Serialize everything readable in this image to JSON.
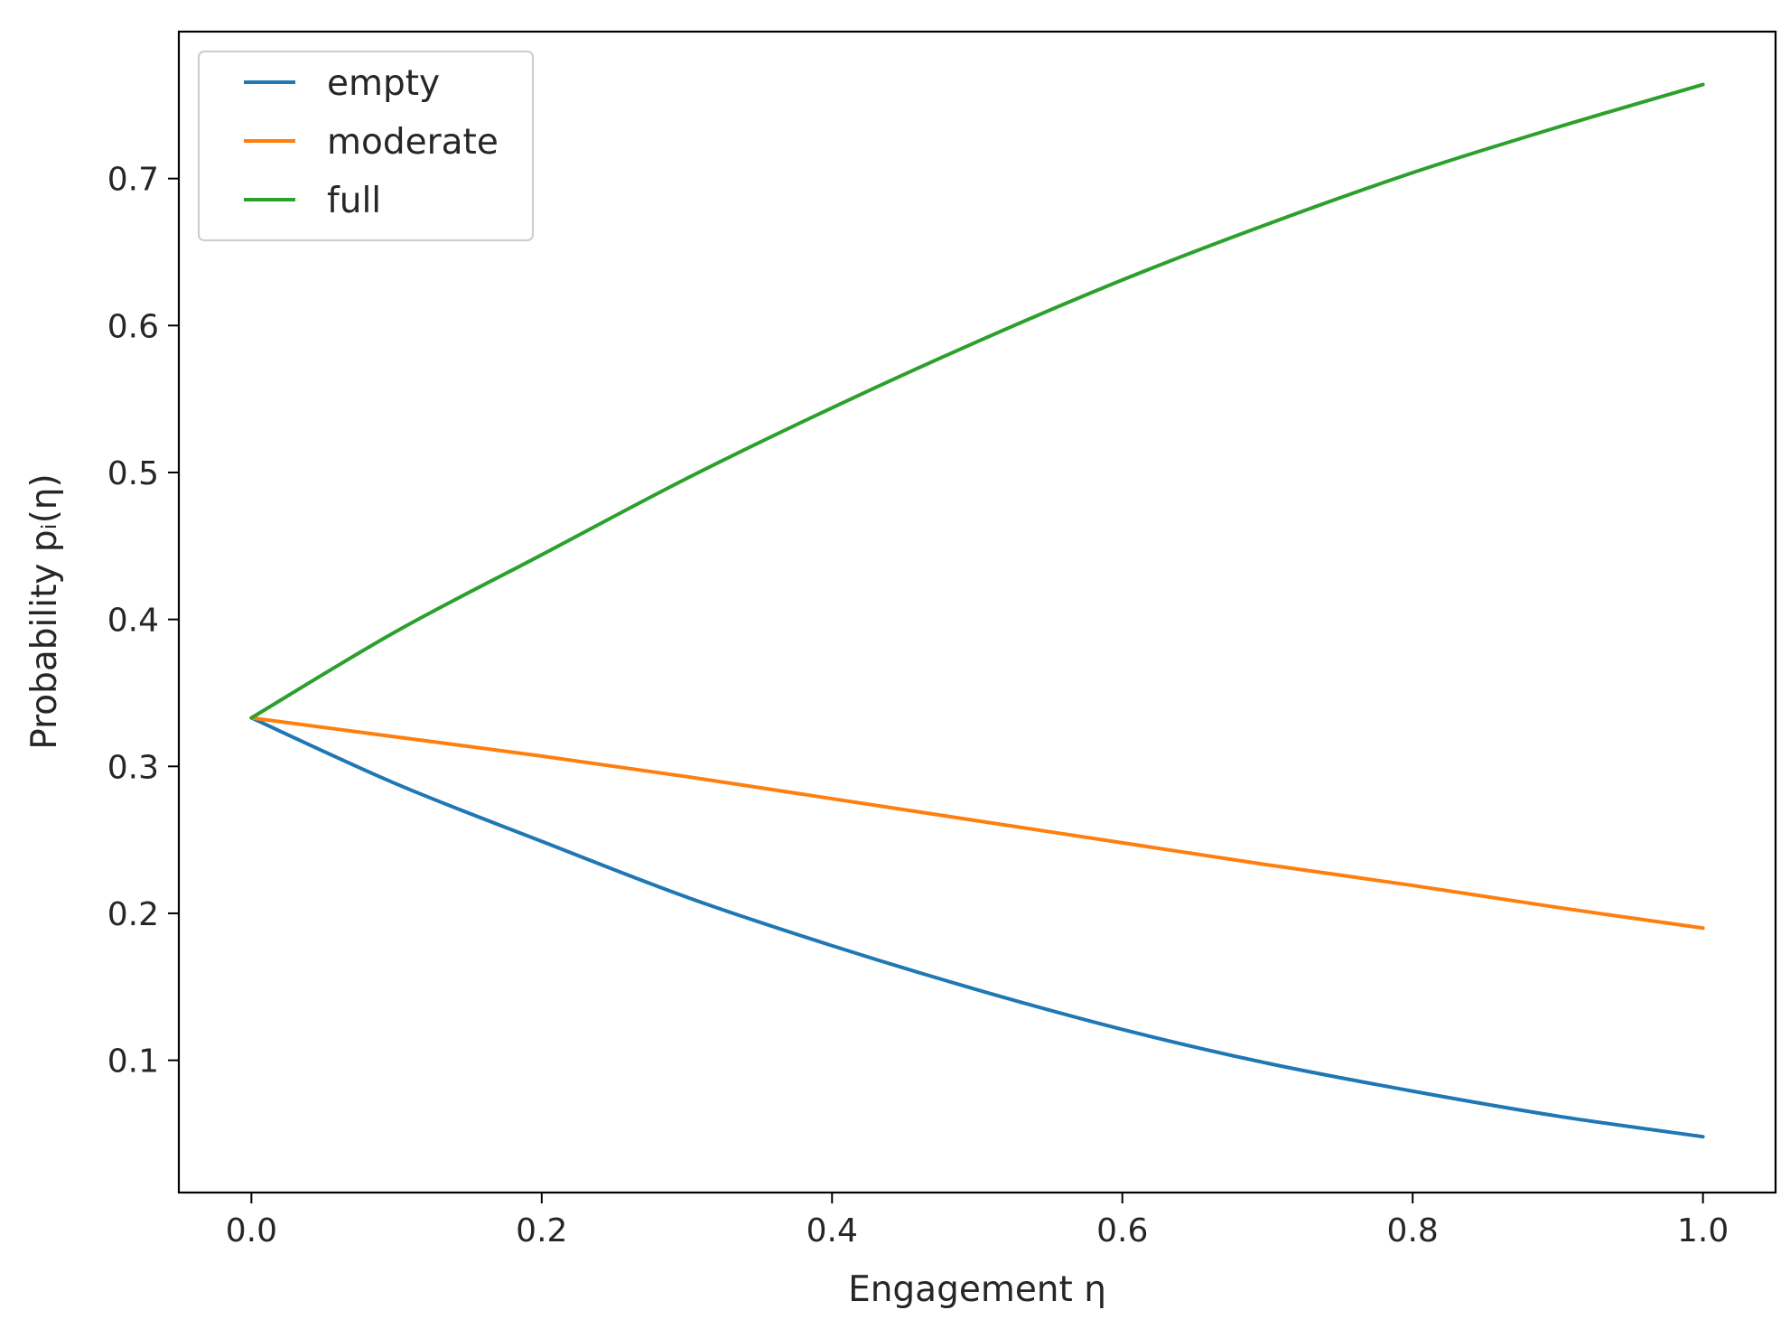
{
  "chart_data": {
    "type": "line",
    "title": "",
    "xlabel": "Engagement η",
    "ylabel": "Probability pᵢ(η)",
    "xlim": [
      -0.05,
      1.05
    ],
    "ylim": [
      0.01,
      0.8
    ],
    "grid": false,
    "legend_position": "top-left",
    "xticks": [
      "0.0",
      "0.2",
      "0.4",
      "0.6",
      "0.8",
      "1.0"
    ],
    "yticks": [
      "0.1",
      "0.2",
      "0.3",
      "0.4",
      "0.5",
      "0.6",
      "0.7"
    ],
    "x": [
      0.0,
      0.1,
      0.2,
      0.3,
      0.4,
      0.5,
      0.6,
      0.7,
      0.8,
      0.9,
      1.0
    ],
    "series": [
      {
        "name": "empty",
        "color": "#1f77b4",
        "values": [
          0.333,
          0.288,
          0.249,
          0.211,
          0.178,
          0.148,
          0.121,
          0.098,
          0.079,
          0.062,
          0.048
        ]
      },
      {
        "name": "moderate",
        "color": "#ff7f0e",
        "values": [
          0.333,
          0.32,
          0.307,
          0.293,
          0.278,
          0.263,
          0.248,
          0.233,
          0.219,
          0.204,
          0.19
        ]
      },
      {
        "name": "full",
        "color": "#2ca02c",
        "values": [
          0.333,
          0.392,
          0.444,
          0.496,
          0.544,
          0.589,
          0.631,
          0.669,
          0.704,
          0.735,
          0.764
        ]
      }
    ]
  }
}
